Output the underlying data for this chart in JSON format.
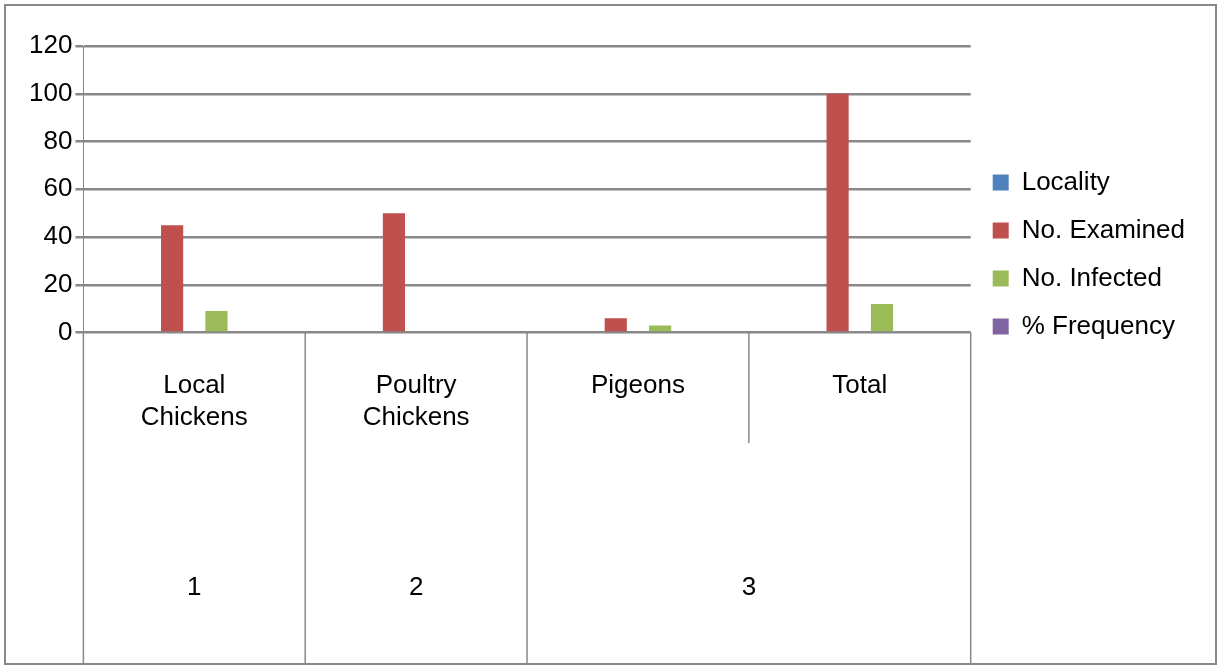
{
  "chart_data": {
    "type": "bar",
    "categories": [
      "Local Chickens",
      "Poultry Chickens",
      "Pigeons",
      "Total"
    ],
    "series": [
      {
        "name": "Locality",
        "color": "#4f81bd",
        "values": [
          0,
          0,
          0,
          0
        ]
      },
      {
        "name": "No. Examined",
        "color": "#c0504d",
        "values": [
          45,
          50,
          6,
          100
        ]
      },
      {
        "name": "No. Infected",
        "color": "#9bbb59",
        "values": [
          9,
          0,
          3,
          12
        ]
      },
      {
        "name": "% Frequency",
        "color": "#8064a2",
        "values": [
          0,
          0,
          0,
          0
        ]
      }
    ],
    "ylim": [
      0,
      120
    ],
    "yticks": [
      0,
      20,
      40,
      60,
      80,
      100,
      120
    ],
    "grid": "y",
    "legend": "right",
    "annotations": [
      "1",
      "2",
      "3"
    ]
  }
}
